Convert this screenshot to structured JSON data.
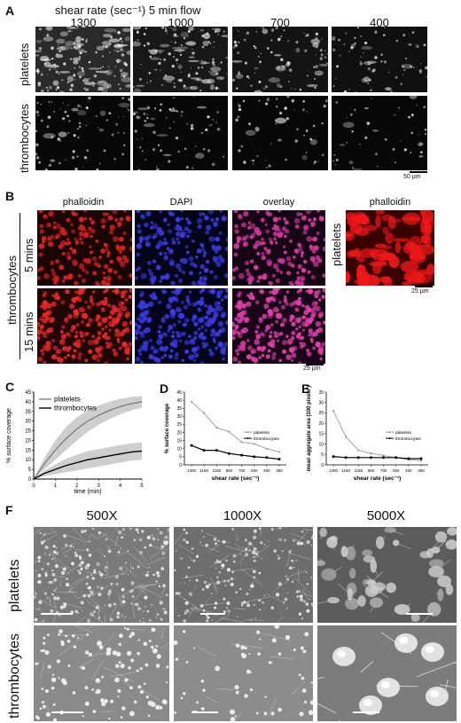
{
  "A": {
    "label": "A",
    "header": "shear rate (sec⁻¹) 5 min flow",
    "columns": [
      "1300",
      "1000",
      "700",
      "400"
    ],
    "rows": [
      "platelets",
      "thrombocytes"
    ],
    "scalebar": "50 µm"
  },
  "B": {
    "label": "B",
    "columns": [
      "phalloidin",
      "DAPI",
      "overlay"
    ],
    "rows": [
      "5 mins",
      "15 mins"
    ],
    "group": "thrombocytes",
    "side_title": "phalloidin",
    "side_row": "platelets",
    "scalebar": "25 µm",
    "side_scalebar": "25 µm"
  },
  "F": {
    "label": "F",
    "columns": [
      "500X",
      "1000X",
      "5000X"
    ],
    "rows": [
      "platelets",
      "thrombocytes"
    ]
  },
  "chart_data": [
    {
      "panel": "C",
      "type": "line",
      "xlabel": "time (min)",
      "ylabel": "% surface coverage",
      "xlim": [
        0,
        5
      ],
      "ylim": [
        0,
        45
      ],
      "xticks": [
        "0",
        "1",
        "2",
        "3",
        "4",
        "5"
      ],
      "yticks": [
        "0",
        "5",
        "10",
        "15",
        "20",
        "25",
        "30",
        "35",
        "40",
        "45"
      ],
      "legend": "top-left",
      "series": [
        {
          "name": "platelets",
          "color": "#808080",
          "x": [
            0,
            0.5,
            1,
            1.5,
            2,
            2.5,
            3,
            3.5,
            4,
            4.5,
            5
          ],
          "y": [
            0,
            8,
            15,
            21,
            26,
            30,
            33,
            35.5,
            37.5,
            39,
            40
          ],
          "band": [
            0,
            3,
            5,
            6,
            6,
            5.5,
            5,
            4.5,
            4,
            3.5,
            3
          ]
        },
        {
          "name": "thrombocytes",
          "color": "#000000",
          "x": [
            0,
            0.5,
            1,
            1.5,
            2,
            2.5,
            3,
            3.5,
            4,
            4.5,
            5
          ],
          "y": [
            0,
            3,
            5,
            7,
            8.5,
            10,
            11,
            12,
            13,
            14,
            14.5
          ],
          "band": [
            0,
            1.5,
            2.5,
            3.5,
            4,
            4.5,
            4.5,
            4.5,
            4.5,
            4.5,
            4.5
          ]
        }
      ]
    },
    {
      "panel": "D",
      "type": "line",
      "xlabel": "shear rate (sec⁻¹)",
      "ylabel": "% surface coverage",
      "categories": [
        "1300",
        "1150",
        "1150",
        "850",
        "700",
        "550",
        "400",
        "350"
      ],
      "ylim": [
        0,
        45
      ],
      "yticks": [
        "0",
        "5",
        "10",
        "15",
        "20",
        "25",
        "30",
        "35",
        "40",
        "45"
      ],
      "legend": "right",
      "series": [
        {
          "name": "platelets",
          "color": "#999999",
          "values": [
            39,
            32,
            23,
            20.5,
            14,
            13,
            10,
            8
          ]
        },
        {
          "name": "thrombocytes",
          "color": "#000000",
          "values": [
            12,
            9,
            9,
            7,
            6,
            5,
            4.5,
            3.5
          ]
        }
      ]
    },
    {
      "panel": "E",
      "type": "line",
      "xlabel": "shear rate (sec⁻¹)",
      "ylabel": "mean aggregate area (100 pixels²)",
      "categories": [
        "1300",
        "1150",
        "1150",
        "850",
        "700",
        "550",
        "400",
        "350"
      ],
      "ylim": [
        0,
        35
      ],
      "yticks": [
        "0",
        "5",
        "10",
        "15",
        "20",
        "25",
        "30",
        "35"
      ],
      "legend": "right",
      "series": [
        {
          "name": "platelets",
          "color": "#999999",
          "values": [
            26,
            13.5,
            7,
            5.5,
            4.5,
            3.5,
            2.5,
            2
          ]
        },
        {
          "name": "thrombocytes",
          "color": "#000000",
          "values": [
            4,
            3.5,
            3.5,
            3.5,
            3.5,
            3.5,
            3,
            3
          ]
        }
      ]
    }
  ]
}
